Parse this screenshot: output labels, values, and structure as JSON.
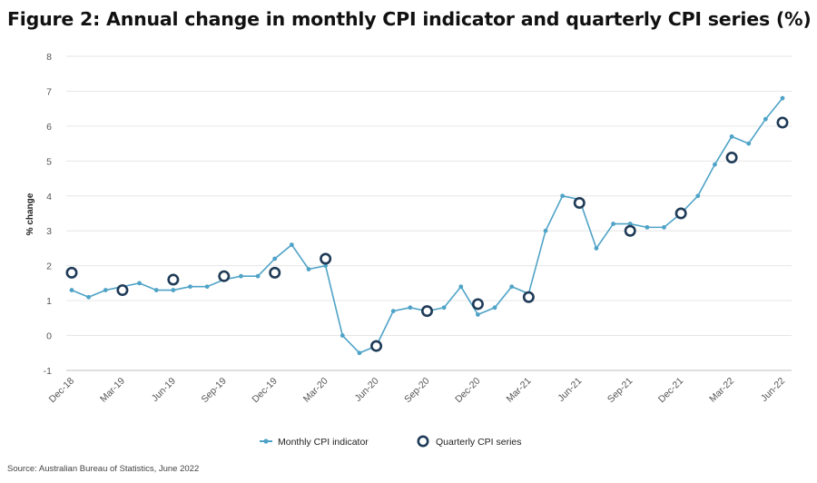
{
  "title": "Figure 2: Annual change in monthly CPI indicator and quarterly CPI series (%)",
  "source": "Source: Australian Bureau of Statistics, June 2022",
  "colors": {
    "monthly": "#4fa3c7",
    "quarterly": "#1f3b57",
    "grid": "#e6e6e6",
    "axis": "#bfbfbf"
  },
  "chart_data": {
    "type": "line",
    "ylabel": "% change",
    "xlabel": "",
    "ylim": [
      -1,
      8
    ],
    "yticks": [
      -1,
      0,
      1,
      2,
      3,
      4,
      5,
      6,
      7,
      8
    ],
    "x": [
      "Dec-18",
      "Jan-19",
      "Feb-19",
      "Mar-19",
      "Apr-19",
      "May-19",
      "Jun-19",
      "Jul-19",
      "Aug-19",
      "Sep-19",
      "Oct-19",
      "Nov-19",
      "Dec-19",
      "Jan-20",
      "Feb-20",
      "Mar-20",
      "Apr-20",
      "May-20",
      "Jun-20",
      "Jul-20",
      "Aug-20",
      "Sep-20",
      "Oct-20",
      "Nov-20",
      "Dec-20",
      "Jan-21",
      "Feb-21",
      "Mar-21",
      "Apr-21",
      "May-21",
      "Jun-21",
      "Jul-21",
      "Aug-21",
      "Sep-21",
      "Oct-21",
      "Nov-21",
      "Dec-21",
      "Jan-22",
      "Feb-22",
      "Mar-22",
      "Apr-22",
      "May-22",
      "Jun-22"
    ],
    "tick_labels": [
      "Dec-18",
      "Mar-19",
      "Jun-19",
      "Sep-19",
      "Dec-19",
      "Mar-20",
      "Jun-20",
      "Sep-20",
      "Dec-20",
      "Mar-21",
      "Jun-21",
      "Sep-21",
      "Dec-21",
      "Mar-22",
      "Jun-22"
    ],
    "series": [
      {
        "name": "Monthly CPI indicator",
        "style": "line-dot",
        "values": [
          1.3,
          1.1,
          1.3,
          1.4,
          1.5,
          1.3,
          1.3,
          1.4,
          1.4,
          1.6,
          1.7,
          1.7,
          2.2,
          2.6,
          1.9,
          2.0,
          0.0,
          -0.5,
          -0.3,
          0.7,
          0.8,
          0.7,
          0.8,
          1.4,
          0.6,
          0.8,
          1.4,
          1.2,
          3.0,
          4.0,
          3.9,
          2.5,
          3.2,
          3.2,
          3.1,
          3.1,
          3.5,
          4.0,
          4.9,
          5.7,
          5.5,
          6.2,
          6.8
        ]
      },
      {
        "name": "Quarterly CPI series",
        "style": "circle",
        "points": [
          {
            "x": "Dec-18",
            "y": 1.8
          },
          {
            "x": "Mar-19",
            "y": 1.3
          },
          {
            "x": "Jun-19",
            "y": 1.6
          },
          {
            "x": "Sep-19",
            "y": 1.7
          },
          {
            "x": "Dec-19",
            "y": 1.8
          },
          {
            "x": "Mar-20",
            "y": 2.2
          },
          {
            "x": "Jun-20",
            "y": -0.3
          },
          {
            "x": "Sep-20",
            "y": 0.7
          },
          {
            "x": "Dec-20",
            "y": 0.9
          },
          {
            "x": "Mar-21",
            "y": 1.1
          },
          {
            "x": "Jun-21",
            "y": 3.8
          },
          {
            "x": "Sep-21",
            "y": 3.0
          },
          {
            "x": "Dec-21",
            "y": 3.5
          },
          {
            "x": "Mar-22",
            "y": 5.1
          },
          {
            "x": "Jun-22",
            "y": 6.1
          }
        ]
      }
    ],
    "legend": [
      "Monthly CPI indicator",
      "Quarterly CPI series"
    ],
    "legend_position": "bottom-center",
    "grid": true
  }
}
